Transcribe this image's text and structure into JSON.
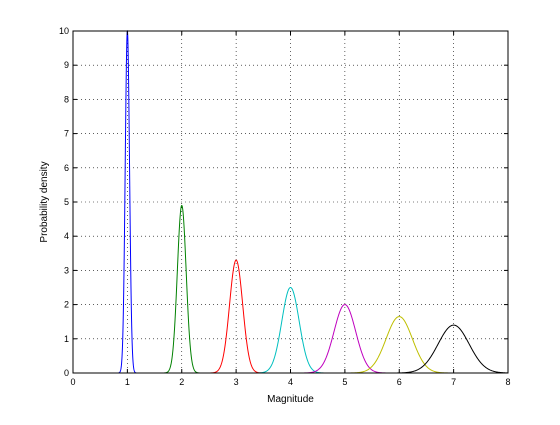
{
  "chart_data": {
    "type": "line",
    "title": "",
    "xlabel": "Magnitude",
    "ylabel": "Probability density",
    "xlim": [
      0,
      8
    ],
    "ylim": [
      0,
      10
    ],
    "xticks": [
      0,
      1,
      2,
      3,
      4,
      5,
      6,
      7,
      8
    ],
    "yticks": [
      0,
      1,
      2,
      3,
      4,
      5,
      6,
      7,
      8,
      9,
      10
    ],
    "grid": true,
    "legend": "none",
    "distribution": "normal",
    "series": [
      {
        "color": "#0000ff",
        "mean": 1,
        "peak": 10.0
      },
      {
        "color": "#008000",
        "mean": 2,
        "peak": 4.9
      },
      {
        "color": "#ff0000",
        "mean": 3,
        "peak": 3.3
      },
      {
        "color": "#00bfbf",
        "mean": 4,
        "peak": 2.5
      },
      {
        "color": "#bf00bf",
        "mean": 5,
        "peak": 2.0
      },
      {
        "color": "#bfbf00",
        "mean": 6,
        "peak": 1.65
      },
      {
        "color": "#000000",
        "mean": 7,
        "peak": 1.4
      }
    ]
  }
}
